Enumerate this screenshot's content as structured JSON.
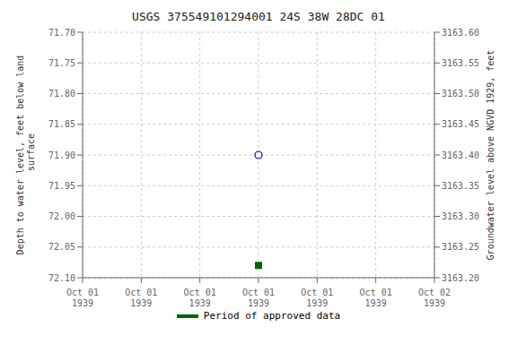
{
  "chart_data": {
    "type": "scatter",
    "title": "USGS 375549101294001 24S 38W 28DC  01",
    "ylabel": "Depth to water level, feet below land\n surface",
    "y2label": "Groundwater level above NGVD 1929, feet",
    "categories": [
      "Oct 01\n1939",
      "Oct 01\n1939",
      "Oct 01\n1939",
      "Oct 01\n1939",
      "Oct 01\n1939",
      "Oct 01\n1939",
      "Oct 02\n1939"
    ],
    "series": [
      {
        "color": "#0000cc",
        "marker": "open_circle",
        "values": [
          null,
          null,
          null,
          71.9,
          null,
          null,
          null
        ]
      },
      {
        "name": "Period of approved data",
        "color": "#006600",
        "marker": "square",
        "values": [
          null,
          null,
          null,
          72.08,
          null,
          null,
          null
        ]
      }
    ],
    "ylim": [
      72.1,
      71.7
    ],
    "yticks": [
      {
        "value": 71.7,
        "label": "71.70"
      },
      {
        "value": 71.75,
        "label": "71.75"
      },
      {
        "value": 71.8,
        "label": "71.80"
      },
      {
        "value": 71.85,
        "label": "71.85"
      },
      {
        "value": 71.9,
        "label": "71.90"
      },
      {
        "value": 71.95,
        "label": "71.95"
      },
      {
        "value": 72.0,
        "label": "72.00"
      },
      {
        "value": 72.05,
        "label": "72.05"
      },
      {
        "value": 72.1,
        "label": "72.10"
      }
    ],
    "y2lim": [
      3163.2,
      3163.6
    ],
    "y2ticks": [
      {
        "value": 3163.6,
        "label": "3163.60"
      },
      {
        "value": 3163.55,
        "label": "3163.55"
      },
      {
        "value": 3163.5,
        "label": "3163.50"
      },
      {
        "value": 3163.45,
        "label": "3163.45"
      },
      {
        "value": 3163.4,
        "label": "3163.40"
      },
      {
        "value": 3163.35,
        "label": "3163.35"
      },
      {
        "value": 3163.3,
        "label": "3163.30"
      },
      {
        "value": 3163.25,
        "label": "3163.25"
      },
      {
        "value": 3163.2,
        "label": "3163.20"
      }
    ],
    "grid": true,
    "legend": "bottom"
  }
}
